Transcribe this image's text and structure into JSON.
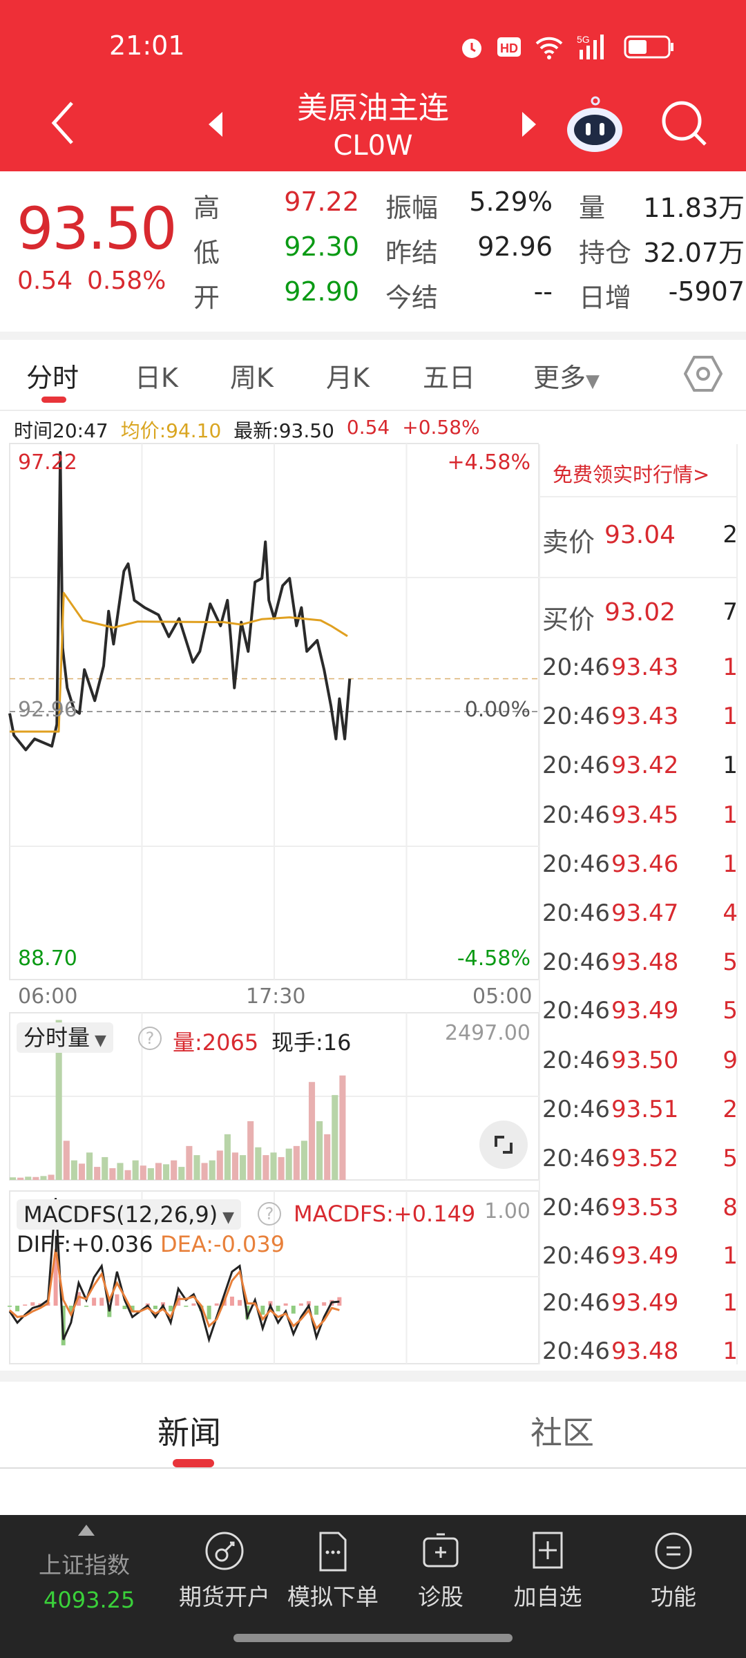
{
  "status_bar": {
    "time": "21:01",
    "icons": [
      "alarm-icon",
      "hd-icon",
      "wifi-icon",
      "5g-signal-icon",
      "battery-icon"
    ]
  },
  "header": {
    "title": "美原油主连",
    "code": "CL0W",
    "back": "back-icon",
    "prev": "prev-contract-icon",
    "next": "next-contract-icon",
    "assistant": "robot-assistant-icon",
    "search": "search-icon"
  },
  "quote": {
    "price": "93.50",
    "change": "0.54",
    "change_pct": "0.58%",
    "rows": [
      [
        {
          "label": "高",
          "value": "97.22",
          "color": "red"
        },
        {
          "label": "振幅",
          "value": "5.29%",
          "color": "dark"
        },
        {
          "label": "量",
          "value": "11.83万",
          "color": "dark"
        }
      ],
      [
        {
          "label": "低",
          "value": "92.30",
          "color": "green"
        },
        {
          "label": "昨结",
          "value": "92.96",
          "color": "dark"
        },
        {
          "label": "持仓",
          "value": "32.07万",
          "color": "dark"
        }
      ],
      [
        {
          "label": "开",
          "value": "92.90",
          "color": "green"
        },
        {
          "label": "今结",
          "value": "--",
          "color": "dark"
        },
        {
          "label": "日增",
          "value": "-5907",
          "color": "dark"
        }
      ]
    ]
  },
  "tabs": {
    "items": [
      "分时",
      "日K",
      "周K",
      "月K",
      "五日",
      "更多"
    ],
    "active": 0,
    "settings_icon": "hexagon-settings-icon"
  },
  "info": {
    "time": "时间20:47",
    "avg": "均价:94.10",
    "latest": "最新:93.50",
    "change": "0.54",
    "pct": "+0.58%"
  },
  "chart_labels": {
    "top_price": "97.22",
    "bottom_price": "88.70",
    "mid_price": "92.96",
    "top_pct": "+4.58%",
    "bottom_pct": "-4.58%",
    "mid_pct": "0.00%",
    "x_ticks": [
      "06:00",
      "17:30",
      "05:00"
    ]
  },
  "colors": {
    "up": "#d8292f",
    "down": "#0a9a14",
    "price_line": "#2a2a2a",
    "avg_line": "#e0a020",
    "header": "#ee2f37",
    "nav_bg": "#252525"
  },
  "chart_data": [
    {
      "type": "line",
      "name": "分时",
      "ylim": [
        88.7,
        97.22
      ],
      "xlim": [
        "06:00",
        "05:00"
      ],
      "prev_settle": 92.96,
      "series": [
        {
          "name": "最新",
          "x": [
            "06:00",
            "06:11",
            "06:42",
            "07:05",
            "07:50",
            "08:03",
            "08:12",
            "08:18",
            "08:30",
            "08:48",
            "09:02",
            "09:15",
            "09:42",
            "10:05",
            "10:18",
            "10:31",
            "10:58",
            "11:09",
            "11:25",
            "11:52",
            "12:28",
            "12:55",
            "13:22",
            "13:58",
            "14:16",
            "14:43",
            "15:10",
            "15:28",
            "15:37",
            "15:46",
            "16:04",
            "16:22",
            "16:40",
            "16:58",
            "17:07",
            "17:16",
            "17:30",
            "17:52",
            "18:10",
            "18:28",
            "18:41",
            "18:55",
            "19:22",
            "19:40",
            "19:58",
            "20:11",
            "20:20",
            "20:34",
            "20:47"
          ],
          "y": [
            92.93,
            92.57,
            92.33,
            92.51,
            92.39,
            92.75,
            97.22,
            94.01,
            93.35,
            92.99,
            92.93,
            93.65,
            93.14,
            93.71,
            94.61,
            94.07,
            95.27,
            95.39,
            94.79,
            94.67,
            94.55,
            94.19,
            94.49,
            93.77,
            93.95,
            94.73,
            94.37,
            94.79,
            94.13,
            93.35,
            94.43,
            93.95,
            95.09,
            95.15,
            95.75,
            94.79,
            94.49,
            95.03,
            95.15,
            94.37,
            94.67,
            93.95,
            94.13,
            93.65,
            93.05,
            92.51,
            93.17,
            92.51,
            93.5
          ]
        },
        {
          "name": "均价",
          "x": [
            "06:00",
            "08:08",
            "08:21",
            "09:11",
            "10:31",
            "11:34",
            "15:19",
            "16:04",
            "16:58",
            "18:10",
            "19:31",
            "19:58",
            "20:41"
          ],
          "y": [
            92.63,
            92.63,
            94.91,
            94.46,
            94.34,
            94.44,
            94.43,
            94.39,
            94.48,
            94.51,
            94.46,
            94.37,
            94.2
          ]
        }
      ]
    },
    {
      "type": "bar",
      "name": "分时量",
      "ylim": [
        0,
        2497
      ],
      "x_step_minutes": 20,
      "start": "06:00",
      "values": [
        40,
        35,
        50,
        45,
        60,
        80,
        2450,
        600,
        300,
        250,
        420,
        200,
        350,
        180,
        260,
        150,
        300,
        220,
        180,
        260,
        240,
        300,
        200,
        520,
        380,
        260,
        300,
        450,
        700,
        420,
        380,
        900,
        500,
        380,
        420,
        350,
        480,
        520,
        600,
        1500,
        900,
        700,
        1300,
        1600
      ]
    },
    {
      "type": "line",
      "name": "MACDFS(12,26,9)",
      "ylim": [
        -0.5,
        1.0
      ],
      "x_step_minutes": 20,
      "start": "06:00",
      "series": [
        {
          "name": "DIFF",
          "values": [
            -0.05,
            -0.15,
            -0.08,
            -0.02,
            0.0,
            0.05,
            0.95,
            -0.3,
            -0.15,
            0.2,
            0.05,
            0.25,
            0.35,
            -0.05,
            0.3,
            0.05,
            -0.1,
            -0.05,
            0.0,
            -0.1,
            0.0,
            -0.15,
            0.15,
            0.05,
            0.1,
            -0.05,
            -0.3,
            -0.1,
            0.1,
            0.3,
            0.35,
            -0.1,
            0.05,
            -0.2,
            0.0,
            -0.15,
            -0.05,
            -0.25,
            -0.1,
            0.0,
            -0.28,
            -0.1,
            0.03,
            0.036
          ]
        },
        {
          "name": "DEA",
          "values": [
            -0.04,
            -0.1,
            -0.09,
            -0.05,
            -0.02,
            0.02,
            0.5,
            0.05,
            -0.08,
            0.08,
            0.06,
            0.18,
            0.28,
            0.05,
            0.2,
            0.08,
            -0.05,
            -0.05,
            -0.02,
            -0.07,
            -0.03,
            -0.1,
            0.06,
            0.06,
            0.08,
            0.0,
            -0.18,
            -0.12,
            0.04,
            0.22,
            0.3,
            0.02,
            0.02,
            -0.12,
            -0.04,
            -0.1,
            -0.07,
            -0.18,
            -0.12,
            -0.04,
            -0.2,
            -0.13,
            -0.02,
            -0.039
          ]
        }
      ]
    }
  ],
  "volume_panel": {
    "selector": "分时量",
    "help": "?",
    "vol": "量:2065",
    "hand": "现手:16",
    "max": "2497.00",
    "fullscreen_icon": "fullscreen-icon"
  },
  "macd_panel": {
    "selector": "MACDFS(12,26,9)",
    "help": "?",
    "macdfs": "MACDFS:+0.149",
    "max": "1.00",
    "diff": "DIFF:+0.036",
    "dea": "DEA:-0.039"
  },
  "side": {
    "promo": "免费领实时行情>",
    "ask": {
      "label": "卖价",
      "price": "93.04",
      "qty": "2"
    },
    "bid": {
      "label": "买价",
      "price": "93.02",
      "qty": "7"
    },
    "trades": [
      {
        "time": "20:46",
        "price": "93.43",
        "qty": "1",
        "up": true
      },
      {
        "time": "20:46",
        "price": "93.43",
        "qty": "1",
        "up": true
      },
      {
        "time": "20:46",
        "price": "93.42",
        "qty": "1",
        "up": false
      },
      {
        "time": "20:46",
        "price": "93.45",
        "qty": "1",
        "up": true
      },
      {
        "time": "20:46",
        "price": "93.46",
        "qty": "1",
        "up": true
      },
      {
        "time": "20:46",
        "price": "93.47",
        "qty": "4",
        "up": true
      },
      {
        "time": "20:46",
        "price": "93.48",
        "qty": "5",
        "up": true
      },
      {
        "time": "20:46",
        "price": "93.49",
        "qty": "5",
        "up": true
      },
      {
        "time": "20:46",
        "price": "93.50",
        "qty": "9",
        "up": true
      },
      {
        "time": "20:46",
        "price": "93.51",
        "qty": "2",
        "up": true
      },
      {
        "time": "20:46",
        "price": "93.52",
        "qty": "5",
        "up": true
      },
      {
        "time": "20:46",
        "price": "93.53",
        "qty": "8",
        "up": true
      },
      {
        "time": "20:46",
        "price": "93.49",
        "qty": "1",
        "up": true
      },
      {
        "time": "20:46",
        "price": "93.49",
        "qty": "1",
        "up": true
      },
      {
        "time": "20:46",
        "price": "93.48",
        "qty": "1",
        "up": true
      }
    ]
  },
  "news_tabs": {
    "items": [
      "新闻",
      "社区"
    ],
    "active": 0
  },
  "bottom_nav": {
    "index_name": "上证指数",
    "index_value": "4093.25",
    "items": [
      {
        "label": "期货开户",
        "icon": "key-circle-icon"
      },
      {
        "label": "模拟下单",
        "icon": "document-icon"
      },
      {
        "label": "诊股",
        "icon": "medical-kit-icon"
      },
      {
        "label": "加自选",
        "icon": "add-square-icon"
      },
      {
        "label": "功能",
        "icon": "menu-circle-icon"
      }
    ]
  }
}
